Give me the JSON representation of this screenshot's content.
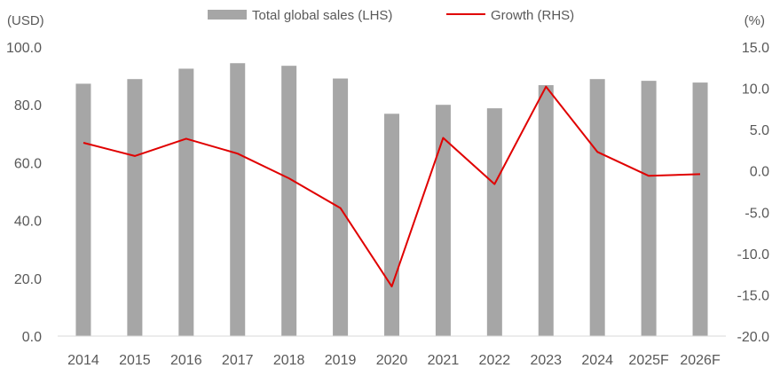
{
  "chart_data": {
    "type": "bar+line",
    "categories": [
      "2014",
      "2015",
      "2016",
      "2017",
      "2018",
      "2019",
      "2020",
      "2021",
      "2022",
      "2023",
      "2024",
      "2025F",
      "2026F"
    ],
    "series": [
      {
        "name": "Total global sales (LHS)",
        "type": "bar",
        "axis": "left",
        "color": "#a6a6a6",
        "values": [
          87.3,
          88.9,
          92.5,
          94.4,
          93.5,
          89.1,
          76.9,
          80.0,
          78.8,
          86.8,
          88.9,
          88.3,
          87.7
        ]
      },
      {
        "name": "Growth (RHS)",
        "type": "line",
        "axis": "right",
        "color": "#e00000",
        "values": [
          3.4,
          1.8,
          3.9,
          2.1,
          -0.9,
          -4.5,
          -14.0,
          4.0,
          -1.6,
          10.2,
          2.3,
          -0.6,
          -0.4
        ]
      }
    ],
    "left_axis": {
      "unit": "(USD)",
      "min": 0,
      "max": 100,
      "ticks": [
        "0.0",
        "20.0",
        "40.0",
        "60.0",
        "80.0",
        "100.0"
      ]
    },
    "right_axis": {
      "unit": "(%)",
      "min": -20,
      "max": 15,
      "ticks": [
        "-20.0",
        "-15.0",
        "-10.0",
        "-5.0",
        "0.0",
        "5.0",
        "10.0",
        "15.0"
      ]
    },
    "grid": false,
    "legend_position": "top"
  }
}
